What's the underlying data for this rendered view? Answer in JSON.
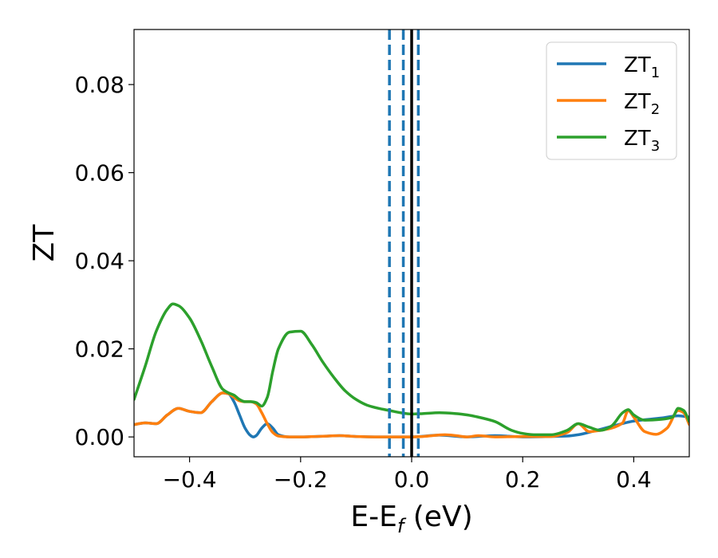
{
  "chart_data": {
    "type": "line",
    "xlabel": {
      "main": "E-E",
      "sub": "f",
      "unit": " (eV)"
    },
    "ylabel": "ZT",
    "xlim": [
      -0.5,
      0.5
    ],
    "ylim": [
      -0.0045,
      0.0925
    ],
    "xticks": [
      -0.4,
      -0.2,
      0.0,
      0.2,
      0.4
    ],
    "xtick_labels": [
      "−0.4",
      "−0.2",
      "0.0",
      "0.2",
      "0.4"
    ],
    "yticks": [
      0.0,
      0.02,
      0.04,
      0.06,
      0.08
    ],
    "ytick_labels": [
      "0.00",
      "0.02",
      "0.04",
      "0.06",
      "0.08"
    ],
    "grid": false,
    "legend_position": "top-right",
    "vlines": [
      {
        "x": -0.04,
        "style": "dashed",
        "color": "#1f77b4"
      },
      {
        "x": -0.015,
        "style": "dashed",
        "color": "#1f77b4"
      },
      {
        "x": 0.0,
        "style": "solid",
        "color": "#000000"
      },
      {
        "x": 0.012,
        "style": "dashed",
        "color": "#1f77b4"
      }
    ],
    "series": [
      {
        "name": "ZT",
        "sub": "1",
        "color": "#1f77b4",
        "x": [
          -0.5,
          -0.48,
          -0.46,
          -0.44,
          -0.42,
          -0.4,
          -0.38,
          -0.36,
          -0.34,
          -0.33,
          -0.32,
          -0.31,
          -0.3,
          -0.29,
          -0.285,
          -0.28,
          -0.27,
          -0.26,
          -0.25,
          -0.24,
          -0.22,
          -0.2,
          -0.15,
          -0.13,
          -0.1,
          -0.05,
          0.0,
          0.05,
          0.1,
          0.15,
          0.2,
          0.25,
          0.28,
          0.3,
          0.33,
          0.36,
          0.4,
          0.45,
          0.48,
          0.5
        ],
        "y": [
          0.0028,
          0.0032,
          0.003,
          0.005,
          0.0065,
          0.0058,
          0.0055,
          0.008,
          0.01,
          0.0098,
          0.008,
          0.005,
          0.002,
          0.0003,
          0.0,
          0.0003,
          0.002,
          0.003,
          0.002,
          0.0005,
          0.0,
          0.0,
          0.0002,
          0.0003,
          0.0001,
          0.0,
          0.0,
          0.0004,
          0.0,
          0.0003,
          0.0,
          0.0001,
          0.0002,
          0.0005,
          0.0014,
          0.0024,
          0.0036,
          0.0043,
          0.0048,
          0.0045
        ]
      },
      {
        "name": "ZT",
        "sub": "2",
        "color": "#ff7f0e",
        "x": [
          -0.5,
          -0.48,
          -0.46,
          -0.44,
          -0.42,
          -0.4,
          -0.38,
          -0.36,
          -0.34,
          -0.33,
          -0.32,
          -0.31,
          -0.3,
          -0.29,
          -0.28,
          -0.27,
          -0.26,
          -0.25,
          -0.24,
          -0.22,
          -0.2,
          -0.15,
          -0.13,
          -0.1,
          -0.05,
          0.0,
          0.02,
          0.06,
          0.08,
          0.1,
          0.12,
          0.15,
          0.2,
          0.25,
          0.28,
          0.3,
          0.32,
          0.34,
          0.36,
          0.38,
          0.39,
          0.4,
          0.42,
          0.44,
          0.46,
          0.48,
          0.49,
          0.5
        ],
        "y": [
          0.0028,
          0.0032,
          0.003,
          0.005,
          0.0065,
          0.0058,
          0.0055,
          0.008,
          0.01,
          0.0098,
          0.009,
          0.0082,
          0.008,
          0.008,
          0.0075,
          0.0055,
          0.003,
          0.001,
          0.0002,
          0.0,
          0.0,
          0.0002,
          0.0003,
          0.0001,
          0.0,
          0.0,
          0.0001,
          0.0005,
          0.0003,
          0.0,
          0.0003,
          0.0,
          0.0001,
          0.0001,
          0.001,
          0.003,
          0.0012,
          0.0015,
          0.002,
          0.0032,
          0.006,
          0.0045,
          0.0012,
          0.0006,
          0.002,
          0.006,
          0.0055,
          0.0028
        ]
      },
      {
        "name": "ZT",
        "sub": "3",
        "color": "#2ca02c",
        "x": [
          -0.5,
          -0.48,
          -0.46,
          -0.44,
          -0.43,
          -0.42,
          -0.4,
          -0.38,
          -0.36,
          -0.34,
          -0.33,
          -0.32,
          -0.31,
          -0.3,
          -0.29,
          -0.28,
          -0.27,
          -0.26,
          -0.25,
          -0.24,
          -0.22,
          -0.2,
          -0.18,
          -0.16,
          -0.14,
          -0.12,
          -0.1,
          -0.08,
          -0.06,
          -0.04,
          -0.02,
          0.0,
          0.02,
          0.05,
          0.08,
          0.1,
          0.12,
          0.15,
          0.18,
          0.2,
          0.22,
          0.25,
          0.28,
          0.3,
          0.32,
          0.34,
          0.36,
          0.38,
          0.39,
          0.4,
          0.42,
          0.45,
          0.47,
          0.48,
          0.49,
          0.5
        ],
        "y": [
          0.0085,
          0.016,
          0.024,
          0.029,
          0.0302,
          0.0298,
          0.027,
          0.022,
          0.016,
          0.0108,
          0.01,
          0.0095,
          0.0085,
          0.008,
          0.008,
          0.0078,
          0.007,
          0.009,
          0.015,
          0.02,
          0.0238,
          0.024,
          0.021,
          0.017,
          0.0135,
          0.0105,
          0.0085,
          0.0072,
          0.0065,
          0.006,
          0.0055,
          0.0052,
          0.0053,
          0.0055,
          0.0053,
          0.005,
          0.0045,
          0.0035,
          0.0015,
          0.0008,
          0.0005,
          0.0005,
          0.0015,
          0.003,
          0.0022,
          0.0015,
          0.0025,
          0.0055,
          0.0062,
          0.005,
          0.0038,
          0.004,
          0.0045,
          0.0065,
          0.006,
          0.0035
        ]
      }
    ]
  }
}
